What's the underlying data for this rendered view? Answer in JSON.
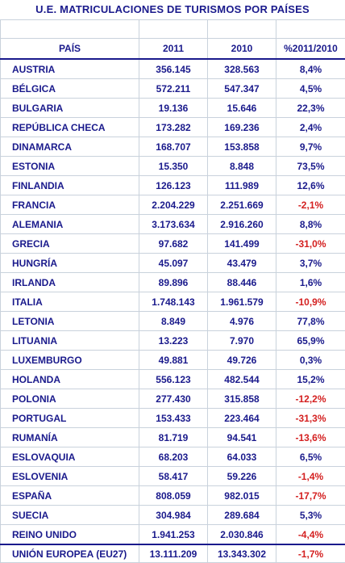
{
  "title": "U.E. MATRICULACIONES DE TURISMOS POR PAÍSES",
  "columns": {
    "country": "PAÍS",
    "y2011": "2011",
    "y2010": "2010",
    "pct": "%2011/2010"
  },
  "colors": {
    "text": "#1a1a8c",
    "negative": "#d42020",
    "grid": "#c9d2dc"
  },
  "rows": [
    {
      "country": "AUSTRIA",
      "y2011": "356.145",
      "y2010": "328.563",
      "pct": "8,4%",
      "negative": false
    },
    {
      "country": "BÉLGICA",
      "y2011": "572.211",
      "y2010": "547.347",
      "pct": "4,5%",
      "negative": false
    },
    {
      "country": "BULGARIA",
      "y2011": "19.136",
      "y2010": "15.646",
      "pct": "22,3%",
      "negative": false
    },
    {
      "country": "REPÚBLICA CHECA",
      "y2011": "173.282",
      "y2010": "169.236",
      "pct": "2,4%",
      "negative": false
    },
    {
      "country": "DINAMARCA",
      "y2011": "168.707",
      "y2010": "153.858",
      "pct": "9,7%",
      "negative": false
    },
    {
      "country": "ESTONIA",
      "y2011": "15.350",
      "y2010": "8.848",
      "pct": "73,5%",
      "negative": false
    },
    {
      "country": "FINLANDIA",
      "y2011": "126.123",
      "y2010": "111.989",
      "pct": "12,6%",
      "negative": false
    },
    {
      "country": "FRANCIA",
      "y2011": "2.204.229",
      "y2010": "2.251.669",
      "pct": "-2,1%",
      "negative": true
    },
    {
      "country": "ALEMANIA",
      "y2011": "3.173.634",
      "y2010": "2.916.260",
      "pct": "8,8%",
      "negative": false
    },
    {
      "country": "GRECIA",
      "y2011": "97.682",
      "y2010": "141.499",
      "pct": "-31,0%",
      "negative": true
    },
    {
      "country": "HUNGRÍA",
      "y2011": "45.097",
      "y2010": "43.479",
      "pct": "3,7%",
      "negative": false
    },
    {
      "country": "IRLANDA",
      "y2011": "89.896",
      "y2010": "88.446",
      "pct": "1,6%",
      "negative": false
    },
    {
      "country": "ITALIA",
      "y2011": "1.748.143",
      "y2010": "1.961.579",
      "pct": "-10,9%",
      "negative": true
    },
    {
      "country": "LETONIA",
      "y2011": "8.849",
      "y2010": "4.976",
      "pct": "77,8%",
      "negative": false
    },
    {
      "country": "LITUANIA",
      "y2011": "13.223",
      "y2010": "7.970",
      "pct": "65,9%",
      "negative": false
    },
    {
      "country": "LUXEMBURGO",
      "y2011": "49.881",
      "y2010": "49.726",
      "pct": "0,3%",
      "negative": false
    },
    {
      "country": "HOLANDA",
      "y2011": "556.123",
      "y2010": "482.544",
      "pct": "15,2%",
      "negative": false
    },
    {
      "country": "POLONIA",
      "y2011": "277.430",
      "y2010": "315.858",
      "pct": "-12,2%",
      "negative": true
    },
    {
      "country": "PORTUGAL",
      "y2011": "153.433",
      "y2010": "223.464",
      "pct": "-31,3%",
      "negative": true
    },
    {
      "country": "RUMANÍA",
      "y2011": "81.719",
      "y2010": "94.541",
      "pct": "-13,6%",
      "negative": true
    },
    {
      "country": "ESLOVAQUIA",
      "y2011": "68.203",
      "y2010": "64.033",
      "pct": "6,5%",
      "negative": false
    },
    {
      "country": "ESLOVENIA",
      "y2011": "58.417",
      "y2010": "59.226",
      "pct": "-1,4%",
      "negative": true
    },
    {
      "country": "ESPAÑA",
      "y2011": "808.059",
      "y2010": "982.015",
      "pct": "-17,7%",
      "negative": true
    },
    {
      "country": "SUECIA",
      "y2011": "304.984",
      "y2010": "289.684",
      "pct": "5,3%",
      "negative": false
    },
    {
      "country": "REINO UNIDO",
      "y2011": "1.941.253",
      "y2010": "2.030.846",
      "pct": "-4,4%",
      "negative": true
    }
  ],
  "total": {
    "country": "UNIÓN EUROPEA (EU27)",
    "y2011": "13.111.209",
    "y2010": "13.343.302",
    "pct": "-1,7%",
    "negative": true
  }
}
